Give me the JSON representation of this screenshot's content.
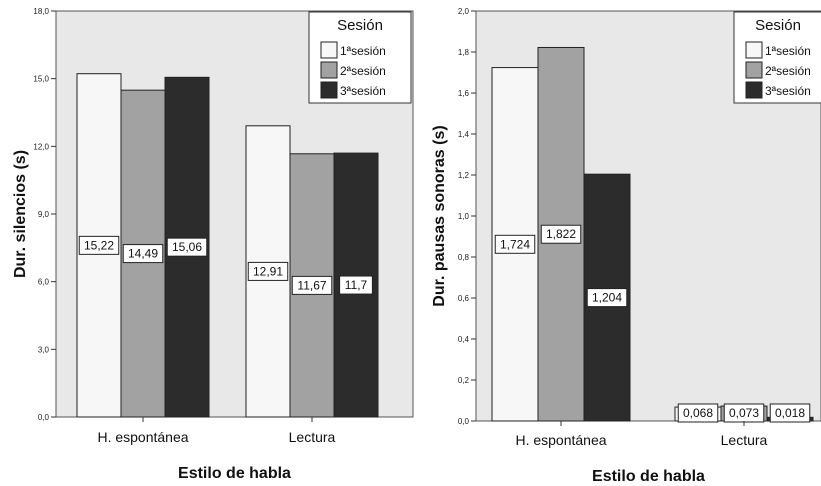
{
  "colors": {
    "plot_bg": "#e8e8e8",
    "series": [
      "#f7f7f7",
      "#a2a2a2",
      "#2c2c2c"
    ],
    "stroke": "#222222"
  },
  "chart_data": [
    {
      "type": "bar",
      "categories": [
        "H. espontánea",
        "Lectura"
      ],
      "series": [
        {
          "name": "1ªsesión",
          "values": [
            15.22,
            12.91
          ],
          "labels": [
            "15,22",
            "12,91"
          ]
        },
        {
          "name": "2ªsesión",
          "values": [
            14.49,
            11.67
          ],
          "labels": [
            "14,49",
            "11,67"
          ]
        },
        {
          "name": "3ªsesión",
          "values": [
            15.06,
            11.7
          ],
          "labels": [
            "15,06",
            "11,7"
          ]
        }
      ],
      "xlabel": "Estilo de habla",
      "ylabel": "Dur. silencios (s)",
      "ylim": [
        0,
        18
      ],
      "yticks": [
        "0,0",
        "3,0",
        "6,0",
        "9,0",
        "12,0",
        "15,0",
        "18,0"
      ],
      "legend_title": "Sesión",
      "legend_position": "top-right",
      "grid": false
    },
    {
      "type": "bar",
      "categories": [
        "H. espontánea",
        "Lectura"
      ],
      "series": [
        {
          "name": "1ªsesión",
          "values": [
            1.724,
            0.068
          ],
          "labels": [
            "1,724",
            "0,068"
          ]
        },
        {
          "name": "2ªsesión",
          "values": [
            1.822,
            0.073
          ],
          "labels": [
            "1,822",
            "0,073"
          ]
        },
        {
          "name": "3ªsesión",
          "values": [
            1.204,
            0.018
          ],
          "labels": [
            "1,204",
            "0,018"
          ]
        }
      ],
      "xlabel": "Estilo de habla",
      "ylabel": "Dur. pausas sonoras (s)",
      "ylim": [
        0,
        2
      ],
      "yticks": [
        "0,0",
        "0,2",
        "0,4",
        "0,6",
        "0,8",
        "1,0",
        "1,2",
        "1,4",
        "1,6",
        "1,8",
        "2,0"
      ],
      "legend_title": "Sesión",
      "legend_position": "top-right",
      "grid": false
    }
  ]
}
